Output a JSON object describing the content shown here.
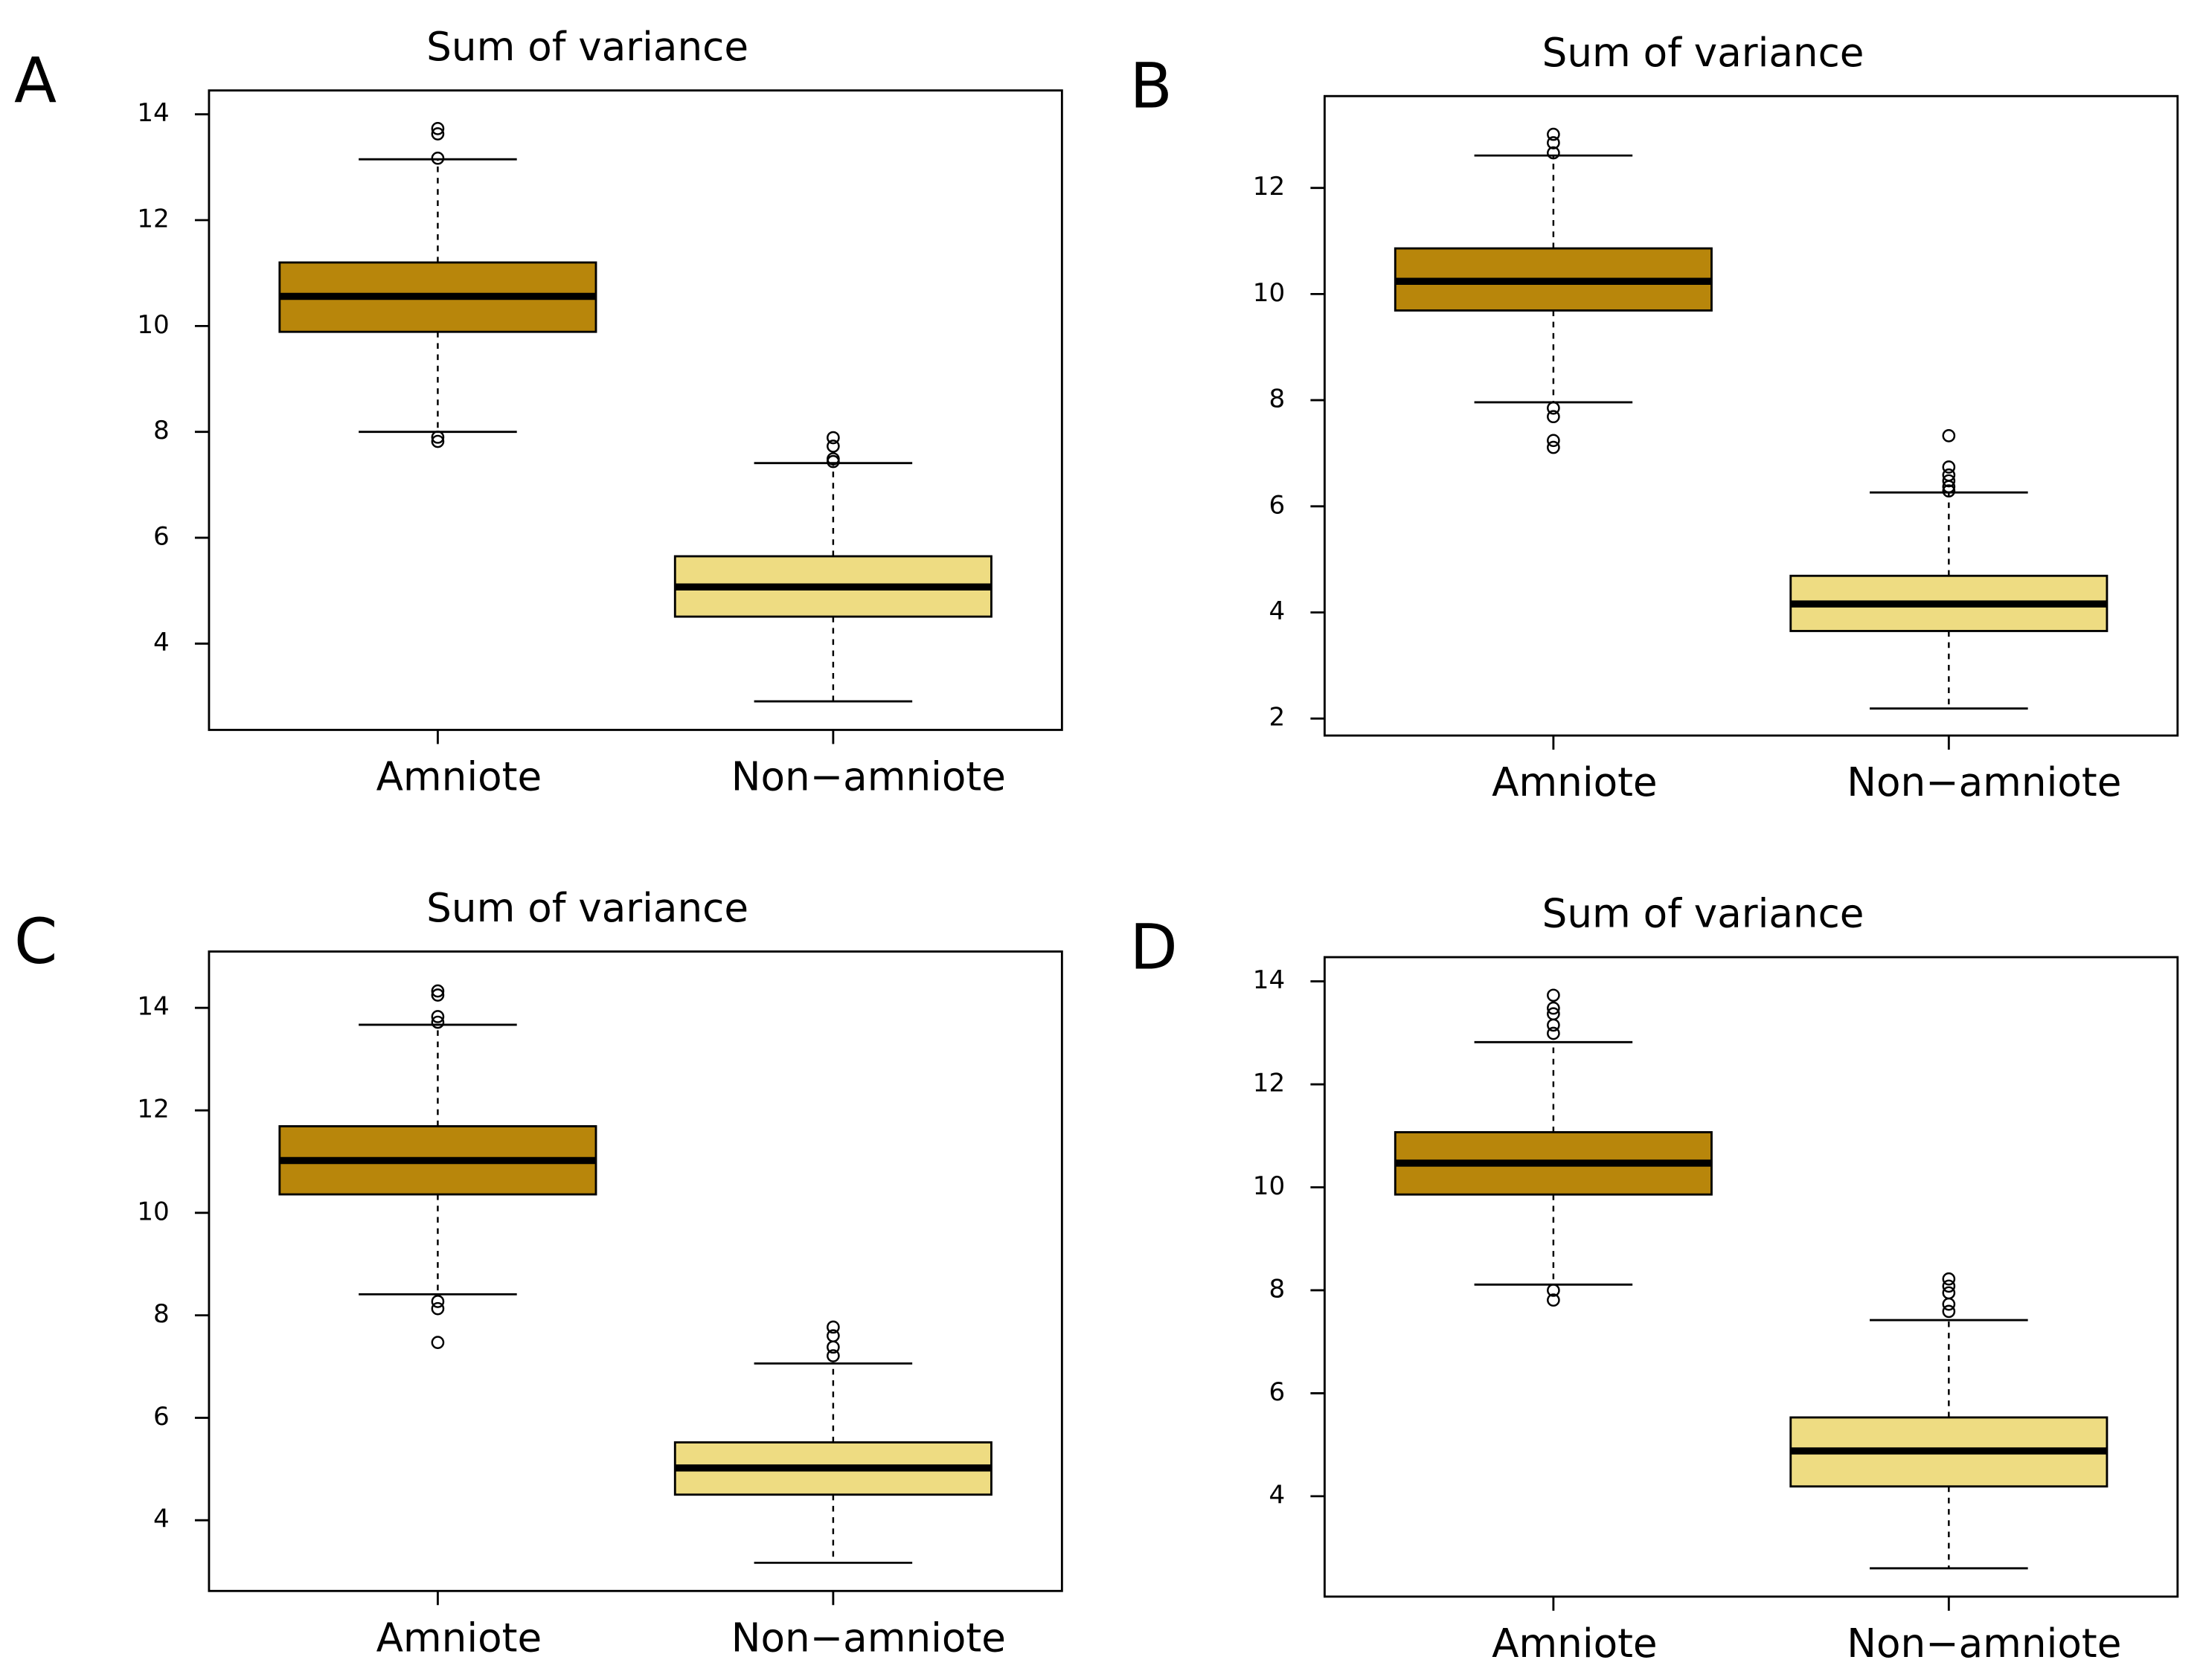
{
  "chart_data": [
    {
      "type": "box",
      "panel_label": "A",
      "title": "Sum of variance",
      "categories": [
        "Amniote",
        "Non−amniote"
      ],
      "ylim": [
        2.37,
        14.45
      ],
      "yticks": [
        4,
        6,
        8,
        10,
        12,
        14
      ],
      "boxes": [
        {
          "color": "#b8860b",
          "whisker_low": 8.0,
          "q1": 9.89,
          "median": 10.56,
          "q3": 11.2,
          "whisker_high": 13.15,
          "outliers": [
            13.73,
            13.63,
            13.17,
            7.9,
            7.82
          ]
        },
        {
          "color": "#eedc82",
          "whisker_low": 2.91,
          "q1": 4.51,
          "median": 5.07,
          "q3": 5.65,
          "whisker_high": 7.41,
          "outliers": [
            7.89,
            7.73,
            7.49,
            7.44
          ]
        }
      ]
    },
    {
      "type": "box",
      "panel_label": "B",
      "title": "Sum of variance",
      "categories": [
        "Amniote",
        "Non−amniote"
      ],
      "ylim": [
        1.68,
        13.73
      ],
      "yticks": [
        2,
        4,
        6,
        8,
        10,
        12
      ],
      "boxes": [
        {
          "color": "#b8860b",
          "whisker_low": 7.96,
          "q1": 9.69,
          "median": 10.24,
          "q3": 10.86,
          "whisker_high": 12.61,
          "outliers": [
            13.01,
            12.85,
            12.66,
            7.85,
            7.69,
            7.24,
            7.11
          ]
        },
        {
          "color": "#eedc82",
          "whisker_low": 2.19,
          "q1": 3.65,
          "median": 4.16,
          "q3": 4.69,
          "whisker_high": 6.26,
          "outliers": [
            7.33,
            6.74,
            6.59,
            6.48,
            6.37,
            6.29
          ]
        }
      ]
    },
    {
      "type": "box",
      "panel_label": "C",
      "title": "Sum of variance",
      "categories": [
        "Amniote",
        "Non−amniote"
      ],
      "ylim": [
        2.62,
        15.1
      ],
      "yticks": [
        4,
        6,
        8,
        10,
        12,
        14
      ],
      "boxes": [
        {
          "color": "#b8860b",
          "whisker_low": 8.41,
          "q1": 10.36,
          "median": 11.02,
          "q3": 11.69,
          "whisker_high": 13.67,
          "outliers": [
            14.33,
            14.25,
            13.83,
            13.72,
            8.27,
            8.13,
            7.47
          ]
        },
        {
          "color": "#eedc82",
          "whisker_low": 3.17,
          "q1": 4.5,
          "median": 5.02,
          "q3": 5.52,
          "whisker_high": 7.06,
          "outliers": [
            7.77,
            7.6,
            7.38,
            7.21
          ]
        }
      ]
    },
    {
      "type": "box",
      "panel_label": "D",
      "title": "Sum of variance",
      "categories": [
        "Amniote",
        "Non−amniote"
      ],
      "ylim": [
        2.05,
        14.47
      ],
      "yticks": [
        4,
        6,
        8,
        10,
        12,
        14
      ],
      "boxes": [
        {
          "color": "#b8860b",
          "whisker_low": 8.11,
          "q1": 9.86,
          "median": 10.47,
          "q3": 11.07,
          "whisker_high": 12.82,
          "outliers": [
            13.73,
            13.48,
            13.37,
            13.15,
            12.99,
            8.0,
            7.81
          ]
        },
        {
          "color": "#eedc82",
          "whisker_low": 2.6,
          "q1": 4.19,
          "median": 4.88,
          "q3": 5.53,
          "whisker_high": 7.42,
          "outliers": [
            8.22,
            8.08,
            7.95,
            7.73,
            7.59
          ]
        }
      ]
    }
  ]
}
